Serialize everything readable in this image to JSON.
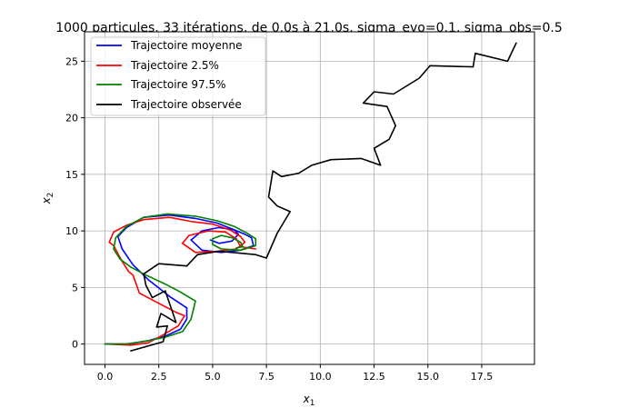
{
  "chart_data": {
    "type": "line",
    "title": "1000 particules, 33 itérations, de 0.0s à 21.0s, sigma_evo=0.1, sigma_obs=0.5",
    "xlabel": {
      "base": "x",
      "sub": "1"
    },
    "ylabel": {
      "base": "x",
      "sub": "2"
    },
    "xlim": [
      -0.95,
      19.95
    ],
    "ylim": [
      -1.8,
      27.6
    ],
    "xticks": [
      0,
      2.5,
      5,
      7.5,
      10,
      12.5,
      15,
      17.5
    ],
    "xtick_labels": [
      "0.0",
      "2.5",
      "5.0",
      "7.5",
      "10.0",
      "12.5",
      "15.0",
      "17.5"
    ],
    "yticks": [
      0,
      5,
      10,
      15,
      20,
      25
    ],
    "ytick_labels": [
      "0",
      "5",
      "10",
      "15",
      "20",
      "25"
    ],
    "grid": true,
    "legend_position": "upper-left",
    "series": [
      {
        "name": "Trajectoire moyenne",
        "color": "#0000ff",
        "points": [
          [
            0.0,
            0.0
          ],
          [
            1.1,
            0.0
          ],
          [
            2.0,
            0.3
          ],
          [
            2.8,
            0.7
          ],
          [
            3.5,
            1.3
          ],
          [
            3.8,
            2.2
          ],
          [
            3.8,
            3.2
          ],
          [
            3.0,
            4.2
          ],
          [
            2.0,
            5.7
          ],
          [
            1.3,
            7.0
          ],
          [
            0.8,
            8.4
          ],
          [
            0.6,
            9.5
          ],
          [
            1.0,
            10.3
          ],
          [
            1.8,
            11.2
          ],
          [
            3.0,
            11.4
          ],
          [
            4.2,
            11.1
          ],
          [
            5.2,
            10.7
          ],
          [
            6.0,
            10.1
          ],
          [
            6.5,
            9.7
          ],
          [
            6.8,
            9.4
          ],
          [
            6.9,
            8.7
          ],
          [
            6.3,
            8.3
          ],
          [
            5.4,
            8.1
          ],
          [
            4.5,
            8.3
          ],
          [
            4.0,
            9.2
          ],
          [
            4.5,
            10.0
          ],
          [
            5.3,
            10.3
          ],
          [
            6.0,
            10.1
          ],
          [
            6.2,
            9.7
          ],
          [
            5.9,
            9.1
          ],
          [
            5.3,
            8.9
          ],
          [
            4.9,
            9.2
          ]
        ]
      },
      {
        "name": "Trajectoire 2.5%",
        "color": "#ff0000",
        "points": [
          [
            0.0,
            0.0
          ],
          [
            1.2,
            -0.1
          ],
          [
            2.0,
            0.1
          ],
          [
            2.7,
            0.8
          ],
          [
            3.4,
            1.6
          ],
          [
            3.7,
            2.5
          ],
          [
            3.3,
            2.8
          ],
          [
            2.5,
            3.6
          ],
          [
            1.6,
            4.5
          ],
          [
            1.3,
            6.1
          ],
          [
            1.1,
            6.4
          ],
          [
            0.8,
            7.3
          ],
          [
            0.4,
            8.7
          ],
          [
            0.2,
            9.0
          ],
          [
            0.4,
            9.9
          ],
          [
            1.0,
            10.5
          ],
          [
            1.8,
            11.0
          ],
          [
            3.0,
            11.2
          ],
          [
            4.1,
            10.8
          ],
          [
            5.0,
            10.6
          ],
          [
            5.8,
            10.1
          ],
          [
            6.3,
            9.5
          ],
          [
            6.5,
            9.0
          ],
          [
            6.1,
            8.4
          ],
          [
            5.2,
            8.2
          ],
          [
            4.2,
            8.1
          ],
          [
            3.6,
            8.9
          ],
          [
            3.9,
            9.6
          ],
          [
            4.8,
            10.0
          ],
          [
            5.6,
            9.9
          ],
          [
            6.1,
            9.3
          ],
          [
            6.3,
            8.6
          ],
          [
            7.0,
            8.4
          ]
        ]
      },
      {
        "name": "Trajectoire 97.5%",
        "color": "#008000",
        "points": [
          [
            0.0,
            0.0
          ],
          [
            1.0,
            0.0
          ],
          [
            2.0,
            0.3
          ],
          [
            2.8,
            0.6
          ],
          [
            3.6,
            1.1
          ],
          [
            4.0,
            2.2
          ],
          [
            4.2,
            3.8
          ],
          [
            3.5,
            4.6
          ],
          [
            2.8,
            5.3
          ],
          [
            1.9,
            6.1
          ],
          [
            1.2,
            6.8
          ],
          [
            0.7,
            7.5
          ],
          [
            0.4,
            8.4
          ],
          [
            0.5,
            9.4
          ],
          [
            1.0,
            10.4
          ],
          [
            1.8,
            11.2
          ],
          [
            2.9,
            11.5
          ],
          [
            4.2,
            11.3
          ],
          [
            5.2,
            10.9
          ],
          [
            6.0,
            10.4
          ],
          [
            6.6,
            9.8
          ],
          [
            7.0,
            9.3
          ],
          [
            7.0,
            8.7
          ],
          [
            6.3,
            8.3
          ],
          [
            5.4,
            8.4
          ],
          [
            5.0,
            8.8
          ],
          [
            5.0,
            9.3
          ],
          [
            5.4,
            9.6
          ],
          [
            5.9,
            9.4
          ],
          [
            6.3,
            9.0
          ],
          [
            6.4,
            8.6
          ],
          [
            6.1,
            8.5
          ]
        ]
      },
      {
        "name": "Trajectoire observée",
        "color": "#000000",
        "points": [
          [
            1.2,
            -0.6
          ],
          [
            2.7,
            0.2
          ],
          [
            2.9,
            1.6
          ],
          [
            2.4,
            1.5
          ],
          [
            2.6,
            2.7
          ],
          [
            3.3,
            1.9
          ],
          [
            2.8,
            4.7
          ],
          [
            2.2,
            4.1
          ],
          [
            1.9,
            5.2
          ],
          [
            1.8,
            6.2
          ],
          [
            2.5,
            7.1
          ],
          [
            3.8,
            6.9
          ],
          [
            4.3,
            7.9
          ],
          [
            5.3,
            8.2
          ],
          [
            7.0,
            7.9
          ],
          [
            7.5,
            7.6
          ],
          [
            8.0,
            9.8
          ],
          [
            8.6,
            11.7
          ],
          [
            8.0,
            12.2
          ],
          [
            7.6,
            13.0
          ],
          [
            7.8,
            15.3
          ],
          [
            8.2,
            14.8
          ],
          [
            9.0,
            15.1
          ],
          [
            9.6,
            15.8
          ],
          [
            10.5,
            16.3
          ],
          [
            11.9,
            16.4
          ],
          [
            12.8,
            15.8
          ],
          [
            12.5,
            17.3
          ],
          [
            13.2,
            18.1
          ],
          [
            13.5,
            19.3
          ],
          [
            13.1,
            21.0
          ],
          [
            12.0,
            21.3
          ],
          [
            12.5,
            22.3
          ],
          [
            13.4,
            22.1
          ],
          [
            14.6,
            23.5
          ],
          [
            15.1,
            24.6
          ],
          [
            17.1,
            24.5
          ],
          [
            17.2,
            25.7
          ],
          [
            18.7,
            25.0
          ],
          [
            19.1,
            26.6
          ]
        ]
      }
    ]
  }
}
